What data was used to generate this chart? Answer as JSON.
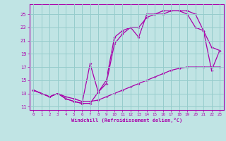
{
  "xlabel": "Windchill (Refroidissement éolien,°C)",
  "bg_color": "#c0e4e4",
  "grid_color": "#96cccc",
  "line_color": "#aa00aa",
  "xlim": [
    -0.5,
    23.5
  ],
  "ylim": [
    10.5,
    26.5
  ],
  "xticks": [
    0,
    1,
    2,
    3,
    4,
    5,
    6,
    7,
    8,
    9,
    10,
    11,
    12,
    13,
    14,
    15,
    16,
    17,
    18,
    19,
    20,
    21,
    22,
    23
  ],
  "yticks": [
    11,
    13,
    15,
    17,
    19,
    21,
    23,
    25
  ],
  "curve1_x": [
    0,
    1,
    2,
    3,
    4,
    5,
    6,
    7,
    8,
    9,
    10,
    11,
    12,
    13,
    14,
    15,
    16,
    17,
    18,
    19,
    20,
    21,
    22,
    23
  ],
  "curve1_y": [
    13.5,
    13.0,
    12.5,
    13.0,
    12.5,
    12.2,
    11.8,
    11.8,
    12.0,
    12.5,
    13.0,
    13.5,
    14.0,
    14.5,
    15.0,
    15.5,
    16.0,
    16.5,
    16.8,
    17.0,
    17.0,
    17.0,
    17.0,
    17.0
  ],
  "curve2_x": [
    0,
    1,
    2,
    3,
    4,
    5,
    6,
    7,
    8,
    9,
    10,
    11,
    12,
    13,
    14,
    15,
    16,
    17,
    18,
    19,
    20,
    21,
    22,
    23
  ],
  "curve2_y": [
    13.5,
    13.0,
    12.5,
    13.0,
    12.2,
    11.8,
    11.5,
    11.5,
    13.2,
    14.5,
    20.5,
    22.0,
    23.0,
    23.0,
    24.5,
    25.0,
    25.5,
    25.5,
    25.5,
    25.5,
    25.0,
    22.5,
    20.0,
    19.5
  ],
  "curve3_x": [
    0,
    1,
    2,
    3,
    4,
    5,
    6,
    7,
    8,
    9,
    10,
    11,
    12,
    13,
    14,
    15,
    16,
    17,
    18,
    19,
    20,
    21,
    22,
    23
  ],
  "curve3_y": [
    13.5,
    13.0,
    12.5,
    13.0,
    12.2,
    11.8,
    11.5,
    17.5,
    13.2,
    15.0,
    21.5,
    22.5,
    23.0,
    21.5,
    25.0,
    25.0,
    25.0,
    25.5,
    25.5,
    25.0,
    23.0,
    22.5,
    16.5,
    19.5
  ]
}
